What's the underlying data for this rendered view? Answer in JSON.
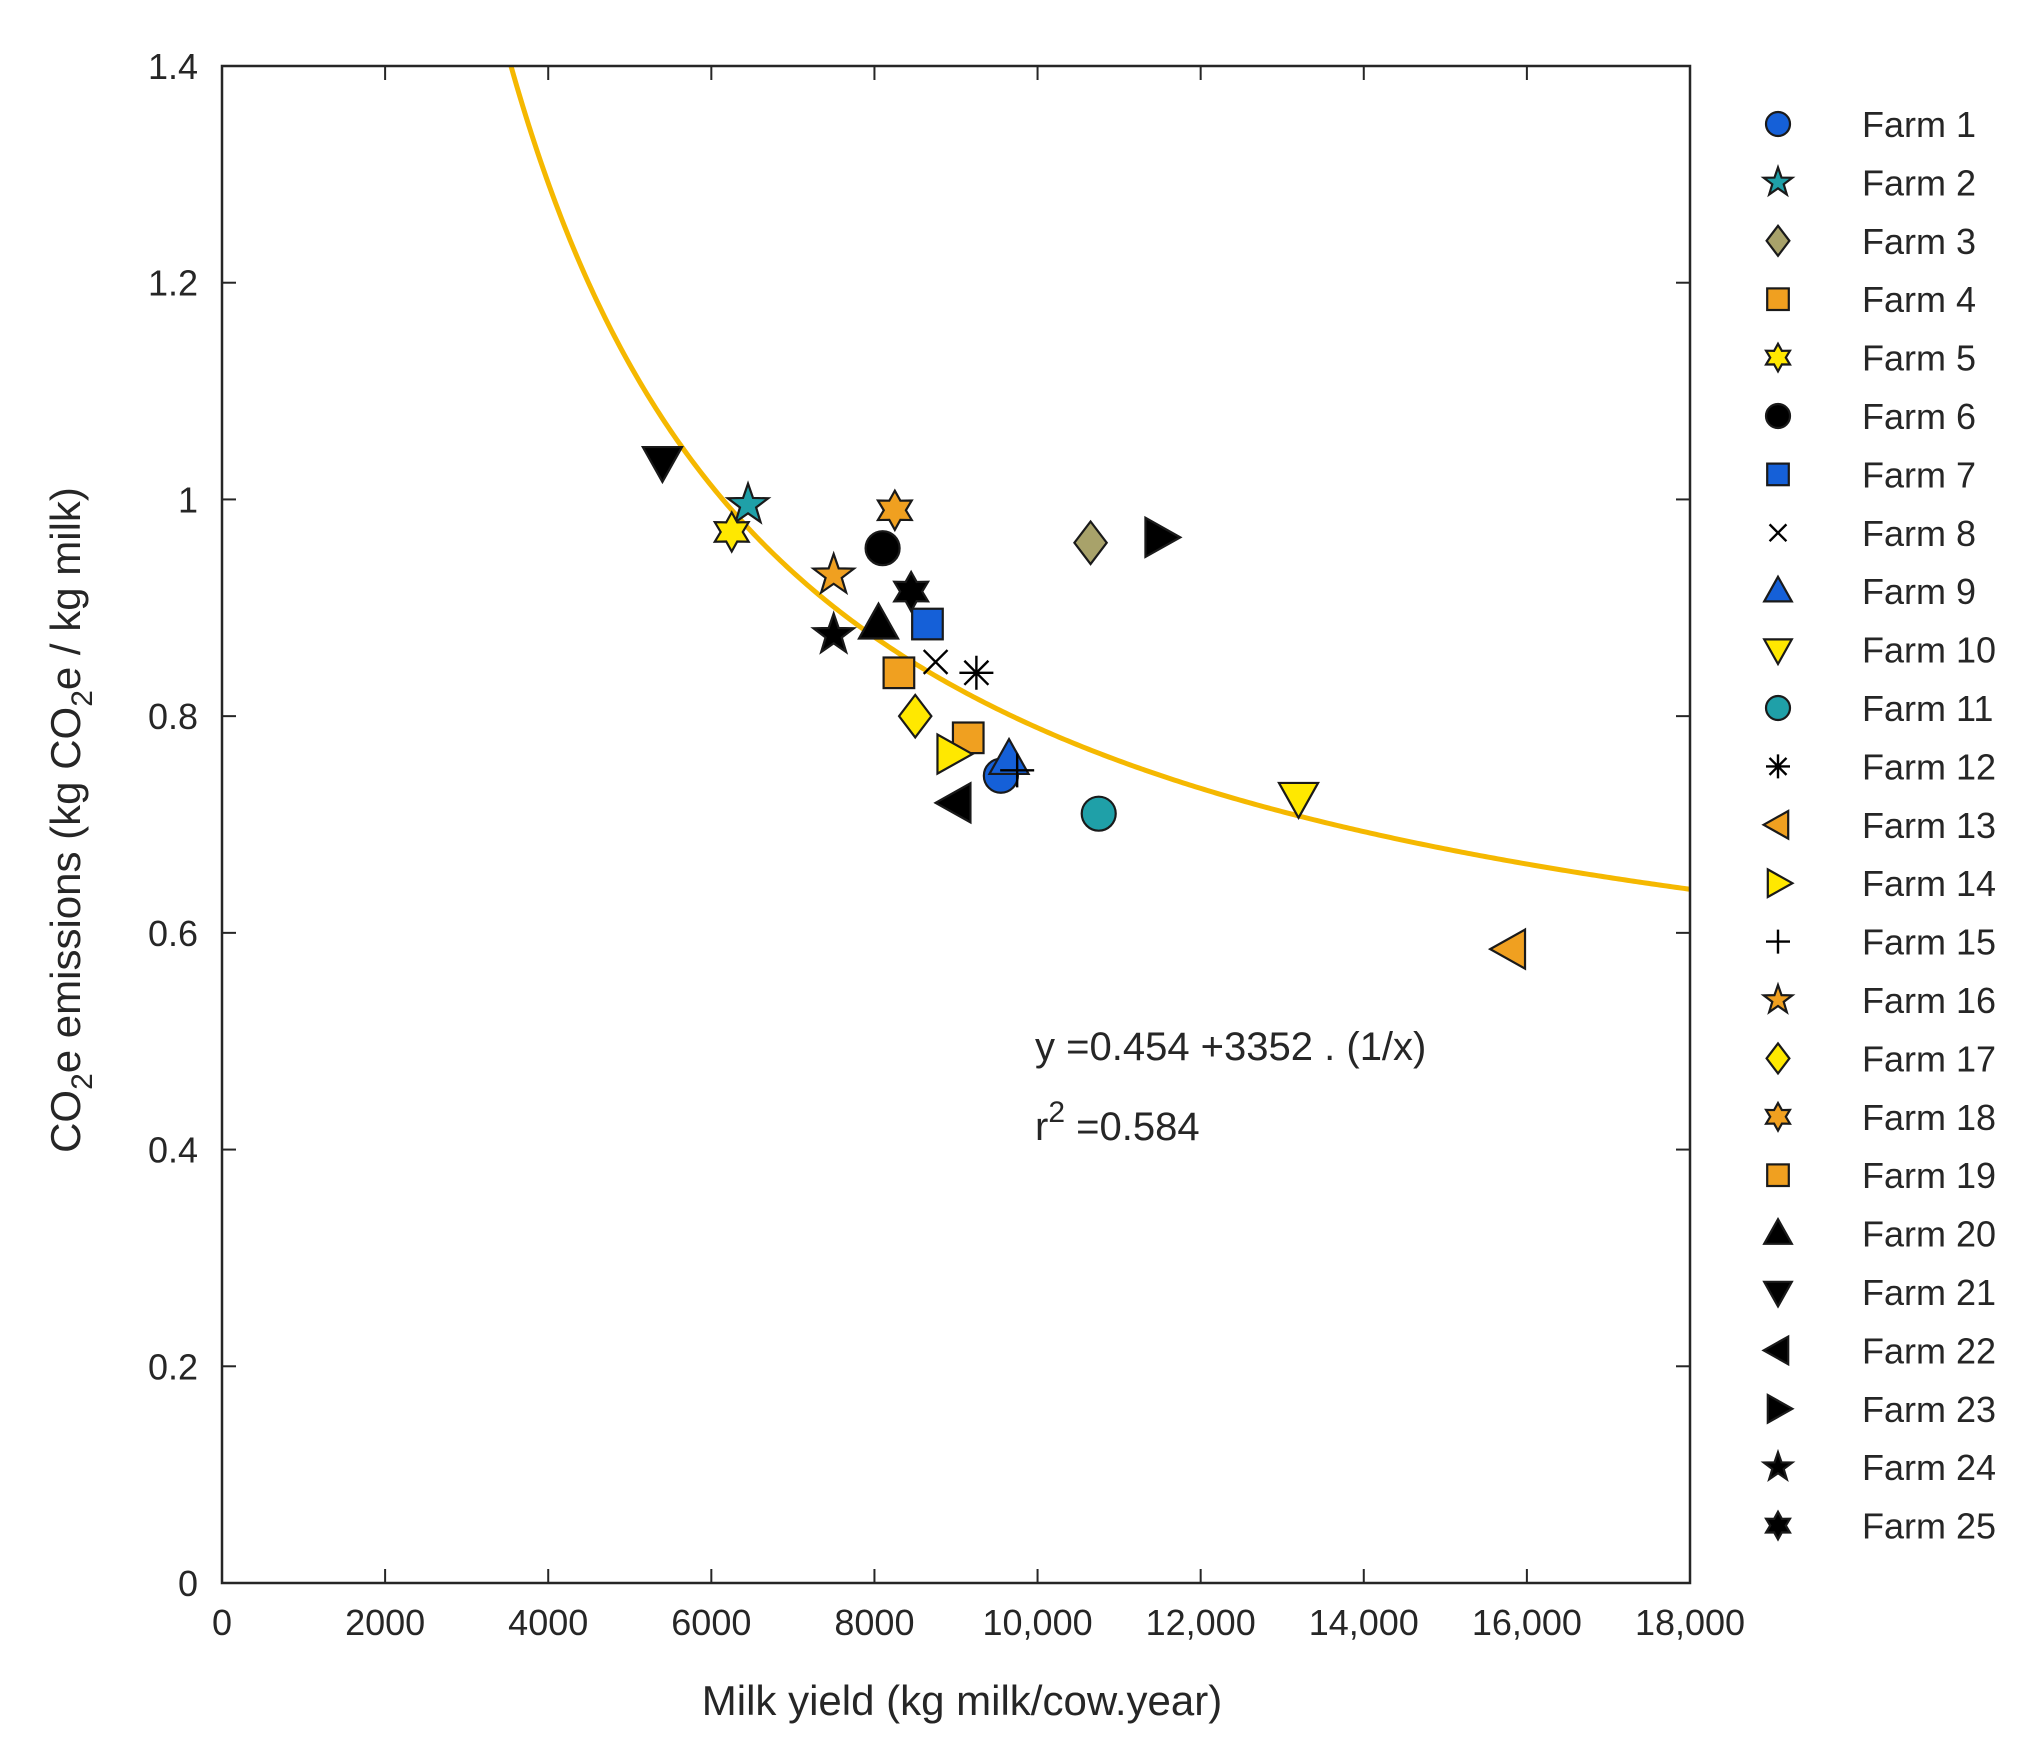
{
  "chart_data": {
    "type": "scatter",
    "xlabel": "Milk yield (kg milk/cow.year)",
    "ylabel": {
      "pre": "CO",
      "sub1": "2",
      "mid": "e emissions (kg CO",
      "sub2": "2",
      "post": "e / kg milk)"
    },
    "xlim": [
      0,
      18000
    ],
    "ylim": [
      0,
      1.4
    ],
    "x_ticks": [
      0,
      2000,
      4000,
      6000,
      8000,
      10000,
      12000,
      14000,
      16000,
      18000
    ],
    "x_tick_labels": [
      "0",
      "2000",
      "4000",
      "6000",
      "8000",
      "10,000",
      "12,000",
      "14,000",
      "16,000",
      "18,000"
    ],
    "y_ticks": [
      0,
      0.2,
      0.4,
      0.6,
      0.8,
      1.0,
      1.2,
      1.4
    ],
    "y_tick_labels": [
      "0",
      "0.2",
      "0.4",
      "0.6",
      "0.8",
      "1",
      "1.2",
      "1.4"
    ],
    "fit": {
      "a": 0.454,
      "b": 3352,
      "color": "#F5B800",
      "equation": "y =0.454 +3352 . (1/x)",
      "r2_base": "r",
      "r2_sup": "2",
      "r2_value": " =0.584"
    },
    "series": [
      {
        "name": "Farm 1",
        "marker": "circle",
        "color": "#1560D8",
        "x": 9550,
        "y": 0.745
      },
      {
        "name": "Farm 2",
        "marker": "star5",
        "color": "#1FA0A8",
        "x": 6450,
        "y": 0.995
      },
      {
        "name": "Farm 3",
        "marker": "diamond",
        "color": "#A8A26A",
        "x": 10650,
        "y": 0.96
      },
      {
        "name": "Farm 4",
        "marker": "square",
        "color": "#F0A020",
        "x": 9150,
        "y": 0.78
      },
      {
        "name": "Farm 5",
        "marker": "hexagram",
        "color": "#FFE800",
        "x": 6250,
        "y": 0.97
      },
      {
        "name": "Farm 6",
        "marker": "circle",
        "color": "#000000",
        "x": 8100,
        "y": 0.955
      },
      {
        "name": "Farm 7",
        "marker": "square",
        "color": "#1560D8",
        "x": 8650,
        "y": 0.885
      },
      {
        "name": "Farm 8",
        "marker": "x",
        "color": "#000000",
        "x": 8750,
        "y": 0.85
      },
      {
        "name": "Farm 9",
        "marker": "triangle-up",
        "color": "#1560D8",
        "x": 9650,
        "y": 0.76
      },
      {
        "name": "Farm 10",
        "marker": "triangle-down",
        "color": "#FFE800",
        "x": 13200,
        "y": 0.725
      },
      {
        "name": "Farm 11",
        "marker": "circle",
        "color": "#1FA0A8",
        "x": 10750,
        "y": 0.71
      },
      {
        "name": "Farm 12",
        "marker": "asterisk",
        "color": "#000000",
        "x": 9250,
        "y": 0.84
      },
      {
        "name": "Farm 13",
        "marker": "triangle-left",
        "color": "#F0A020",
        "x": 15800,
        "y": 0.585
      },
      {
        "name": "Farm 14",
        "marker": "triangle-right",
        "color": "#FFE800",
        "x": 8950,
        "y": 0.765
      },
      {
        "name": "Farm 15",
        "marker": "plus",
        "color": "#000000",
        "x": 9750,
        "y": 0.75
      },
      {
        "name": "Farm 16",
        "marker": "star5",
        "color": "#F0A020",
        "x": 7500,
        "y": 0.93
      },
      {
        "name": "Farm 17",
        "marker": "diamond",
        "color": "#FFE800",
        "x": 8500,
        "y": 0.8
      },
      {
        "name": "Farm 18",
        "marker": "hexagram",
        "color": "#F0A020",
        "x": 8250,
        "y": 0.99
      },
      {
        "name": "Farm 19",
        "marker": "square",
        "color": "#F0A020",
        "x": 8300,
        "y": 0.84
      },
      {
        "name": "Farm 20",
        "marker": "triangle-up",
        "color": "#000000",
        "x": 8050,
        "y": 0.885
      },
      {
        "name": "Farm 21",
        "marker": "triangle-down",
        "color": "#000000",
        "x": 5400,
        "y": 1.035
      },
      {
        "name": "Farm 22",
        "marker": "triangle-left",
        "color": "#000000",
        "x": 9000,
        "y": 0.72
      },
      {
        "name": "Farm 23",
        "marker": "triangle-right",
        "color": "#000000",
        "x": 11500,
        "y": 0.965
      },
      {
        "name": "Farm 24",
        "marker": "star5",
        "color": "#000000",
        "x": 7500,
        "y": 0.875
      },
      {
        "name": "Farm 25",
        "marker": "hexagram",
        "color": "#000000",
        "x": 8450,
        "y": 0.915
      }
    ]
  }
}
